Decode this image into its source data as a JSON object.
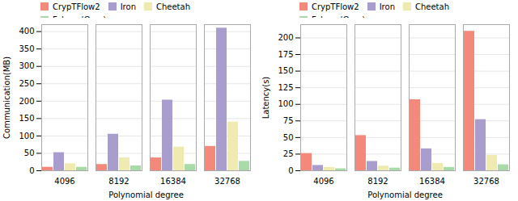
{
  "chart_data": [
    {
      "type": "bar",
      "categories": [
        "4096",
        "8192",
        "16384",
        "32768"
      ],
      "series": [
        {
          "name": "CrypTFlow2",
          "color": "#f4897b",
          "values": [
            10,
            18,
            37,
            70
          ]
        },
        {
          "name": "Iron",
          "color": "#a89dcc",
          "values": [
            52,
            105,
            203,
            410
          ]
        },
        {
          "name": "Cheetah",
          "color": "#eeeab0",
          "values": [
            20,
            37,
            68,
            140
          ]
        },
        {
          "name": "Falcon (Ours)",
          "color": "#a8dba8",
          "values": [
            10,
            14,
            18,
            27
          ]
        }
      ],
      "xlabel": "Polynomial degree",
      "ylabel": "Communication(MB)",
      "ylim": [
        0,
        420
      ],
      "yticks": [
        0,
        50,
        100,
        150,
        200,
        250,
        300,
        350,
        400
      ],
      "grid": true,
      "legend": "upper left"
    },
    {
      "type": "bar",
      "categories": [
        "4096",
        "8192",
        "16384",
        "32768"
      ],
      "series": [
        {
          "name": "CrypTFlow2",
          "color": "#f4897b",
          "values": [
            26,
            53,
            107,
            210
          ]
        },
        {
          "name": "Iron",
          "color": "#a89dcc",
          "values": [
            8,
            14,
            33,
            77
          ]
        },
        {
          "name": "Cheetah",
          "color": "#eeeab0",
          "values": [
            5,
            7,
            11,
            23
          ]
        },
        {
          "name": "Falcon (Ours)",
          "color": "#a8dba8",
          "values": [
            3,
            4,
            5,
            9
          ]
        }
      ],
      "xlabel": "Polynomial degree",
      "ylabel": "Latency(s)",
      "ylim": [
        0,
        220
      ],
      "yticks": [
        0,
        25,
        50,
        75,
        100,
        125,
        150,
        175,
        200
      ],
      "grid": true,
      "legend": "upper left"
    }
  ]
}
